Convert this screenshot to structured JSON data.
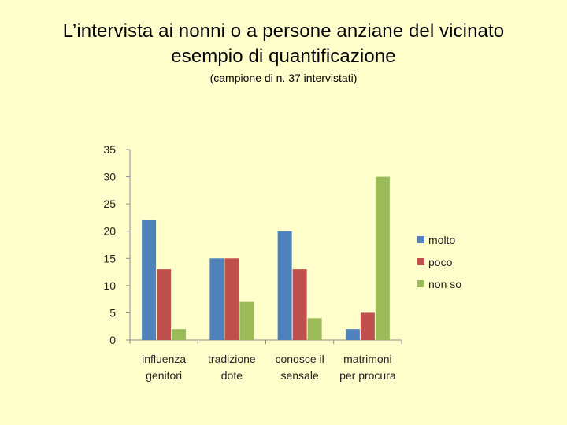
{
  "header": {
    "title_line1": "L’intervista ai nonni o a persone anziane del vicinato",
    "title_line2": "esempio di quantificazione",
    "subtitle": "(campione di n. 37 intervistati)"
  },
  "chart_data": {
    "type": "bar",
    "categories": [
      [
        "influenza",
        "genitori"
      ],
      [
        "tradizione",
        "dote"
      ],
      [
        "conosce il",
        "sensale"
      ],
      [
        "matrimoni",
        "per procura"
      ]
    ],
    "series": [
      {
        "name": "molto",
        "values": [
          22,
          15,
          20,
          2
        ],
        "color": "#4f81bd"
      },
      {
        "name": "poco",
        "values": [
          13,
          15,
          13,
          5
        ],
        "color": "#c0504d"
      },
      {
        "name": "non so",
        "values": [
          2,
          7,
          4,
          30
        ],
        "color": "#9bbb59"
      }
    ],
    "ylim": [
      0,
      35
    ],
    "yticks": [
      0,
      5,
      10,
      15,
      20,
      25,
      30,
      35
    ],
    "grid": false,
    "legend_position": "right"
  }
}
